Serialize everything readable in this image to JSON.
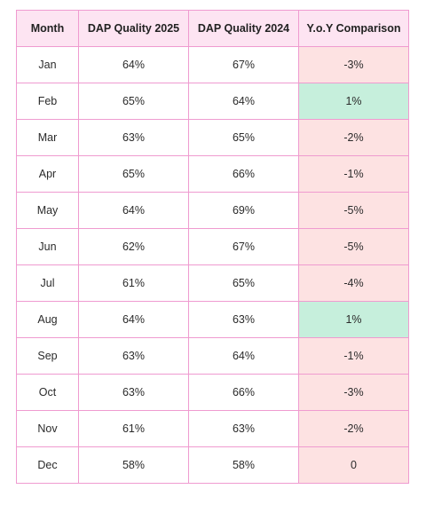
{
  "table": {
    "headers": {
      "month": "Month",
      "q2025": "DAP Quality 2025",
      "q2024": "DAP Quality 2024",
      "yoy": "Y.o.Y Comparison"
    },
    "rows": [
      {
        "month": "Jan",
        "q2025": "64%",
        "q2024": "67%",
        "yoy": "-3%",
        "status": "neg"
      },
      {
        "month": "Feb",
        "q2025": "65%",
        "q2024": "64%",
        "yoy": "1%",
        "status": "pos"
      },
      {
        "month": "Mar",
        "q2025": "63%",
        "q2024": "65%",
        "yoy": "-2%",
        "status": "neg"
      },
      {
        "month": "Apr",
        "q2025": "65%",
        "q2024": "66%",
        "yoy": "-1%",
        "status": "neg"
      },
      {
        "month": "May",
        "q2025": "64%",
        "q2024": "69%",
        "yoy": "-5%",
        "status": "neg"
      },
      {
        "month": "Jun",
        "q2025": "62%",
        "q2024": "67%",
        "yoy": "-5%",
        "status": "neg"
      },
      {
        "month": "Jul",
        "q2025": "61%",
        "q2024": "65%",
        "yoy": "-4%",
        "status": "neg"
      },
      {
        "month": "Aug",
        "q2025": "64%",
        "q2024": "63%",
        "yoy": "1%",
        "status": "pos"
      },
      {
        "month": "Sep",
        "q2025": "63%",
        "q2024": "64%",
        "yoy": "-1%",
        "status": "neg"
      },
      {
        "month": "Oct",
        "q2025": "63%",
        "q2024": "66%",
        "yoy": "-3%",
        "status": "neg"
      },
      {
        "month": "Nov",
        "q2025": "61%",
        "q2024": "63%",
        "yoy": "-2%",
        "status": "neg"
      },
      {
        "month": "Dec",
        "q2025": "58%",
        "q2024": "58%",
        "yoy": "0",
        "status": "neutral"
      }
    ]
  },
  "colors": {
    "border": "#ef9bd0",
    "header_bg": "#fde4f2",
    "negative_bg": "#fde2e2",
    "positive_bg": "#c6efdc"
  }
}
